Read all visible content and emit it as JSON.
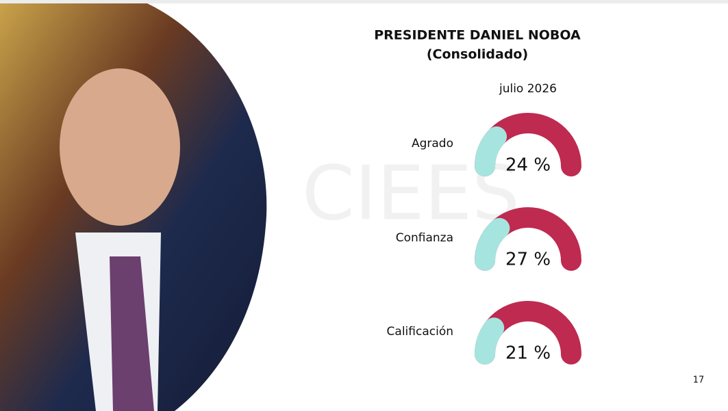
{
  "chart_data": {
    "type": "gauge",
    "title": "PRESIDENTE DANIEL  NOBOA",
    "subtitle": "(Consolidado)",
    "period": "julio 2026",
    "categories": [
      "Agrado",
      "Confianza",
      "Calificación"
    ],
    "values": [
      24,
      27,
      21
    ],
    "value_labels": [
      "24 %",
      "27 %",
      "21 %"
    ],
    "color": "#a6e5df",
    "track_color": "#bf2a50",
    "ylim": [
      0,
      100
    ]
  },
  "watermark": "CIEES",
  "page_number": "17"
}
